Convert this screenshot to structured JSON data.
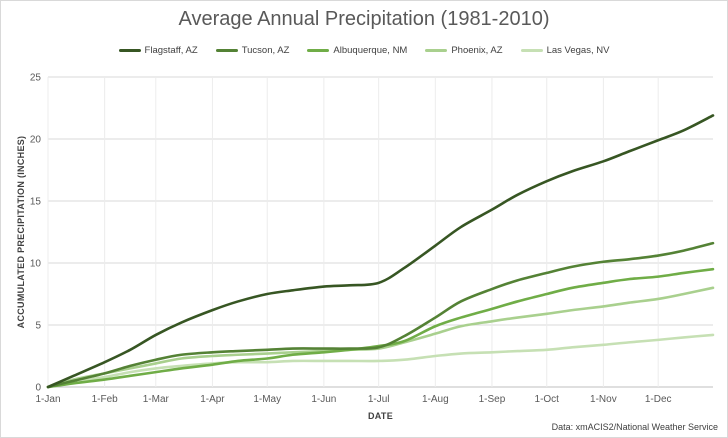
{
  "chart_data": {
    "type": "line",
    "title": "Average Annual Precipitation (1981-2010)",
    "xlabel": "DATE",
    "ylabel": "ACCUMULATED PRECIPITATION (INCHES)",
    "ylim": [
      0,
      25
    ],
    "yticks": [
      0,
      5,
      10,
      15,
      20,
      25
    ],
    "grid": true,
    "legend_position": "top",
    "x_ticks": [
      "1-Jan",
      "1-Feb",
      "1-Mar",
      "1-Apr",
      "1-May",
      "1-Jun",
      "1-Jul",
      "1-Aug",
      "1-Sep",
      "1-Oct",
      "1-Nov",
      "1-Dec"
    ],
    "x": [
      "1-Jan",
      "15-Jan",
      "1-Feb",
      "15-Feb",
      "1-Mar",
      "15-Mar",
      "1-Apr",
      "15-Apr",
      "1-May",
      "15-May",
      "1-Jun",
      "15-Jun",
      "1-Jul",
      "15-Jul",
      "1-Aug",
      "15-Aug",
      "1-Sep",
      "15-Sep",
      "1-Oct",
      "15-Oct",
      "1-Nov",
      "15-Nov",
      "1-Dec",
      "15-Dec",
      "31-Dec"
    ],
    "series": [
      {
        "name": "Flagstaff, AZ",
        "color": "#375623",
        "values": [
          0,
          0.9,
          2.0,
          3.0,
          4.2,
          5.2,
          6.2,
          6.9,
          7.5,
          7.8,
          8.1,
          8.2,
          8.4,
          9.6,
          11.4,
          12.9,
          14.3,
          15.5,
          16.6,
          17.4,
          18.2,
          19.0,
          19.9,
          20.7,
          21.9
        ]
      },
      {
        "name": "Tucson, AZ",
        "color": "#548235",
        "values": [
          0,
          0.5,
          1.1,
          1.7,
          2.2,
          2.6,
          2.8,
          2.9,
          3.0,
          3.1,
          3.1,
          3.1,
          3.2,
          4.1,
          5.6,
          6.9,
          7.9,
          8.6,
          9.2,
          9.7,
          10.1,
          10.3,
          10.6,
          11.0,
          11.6
        ]
      },
      {
        "name": "Albuquerque, NM",
        "color": "#70ad47",
        "values": [
          0,
          0.3,
          0.6,
          0.9,
          1.2,
          1.5,
          1.8,
          2.1,
          2.3,
          2.6,
          2.8,
          3.0,
          3.3,
          3.7,
          4.9,
          5.6,
          6.3,
          6.9,
          7.5,
          8.0,
          8.4,
          8.7,
          8.9,
          9.2,
          9.5
        ]
      },
      {
        "name": "Phoenix, AZ",
        "color": "#a9d08e",
        "values": [
          0,
          0.6,
          1.1,
          1.5,
          1.9,
          2.3,
          2.5,
          2.6,
          2.7,
          2.8,
          2.9,
          3.0,
          3.1,
          3.6,
          4.3,
          4.9,
          5.3,
          5.6,
          5.9,
          6.2,
          6.5,
          6.8,
          7.1,
          7.5,
          8.0
        ]
      },
      {
        "name": "Las Vegas, NV",
        "color": "#c6e0b4",
        "values": [
          0,
          0.4,
          0.8,
          1.2,
          1.5,
          1.7,
          1.9,
          2.0,
          2.0,
          2.1,
          2.1,
          2.1,
          2.1,
          2.2,
          2.5,
          2.7,
          2.8,
          2.9,
          3.0,
          3.2,
          3.4,
          3.6,
          3.8,
          4.0,
          4.2
        ]
      }
    ]
  },
  "source_note": "Data: xmACIS2/National Weather Service"
}
